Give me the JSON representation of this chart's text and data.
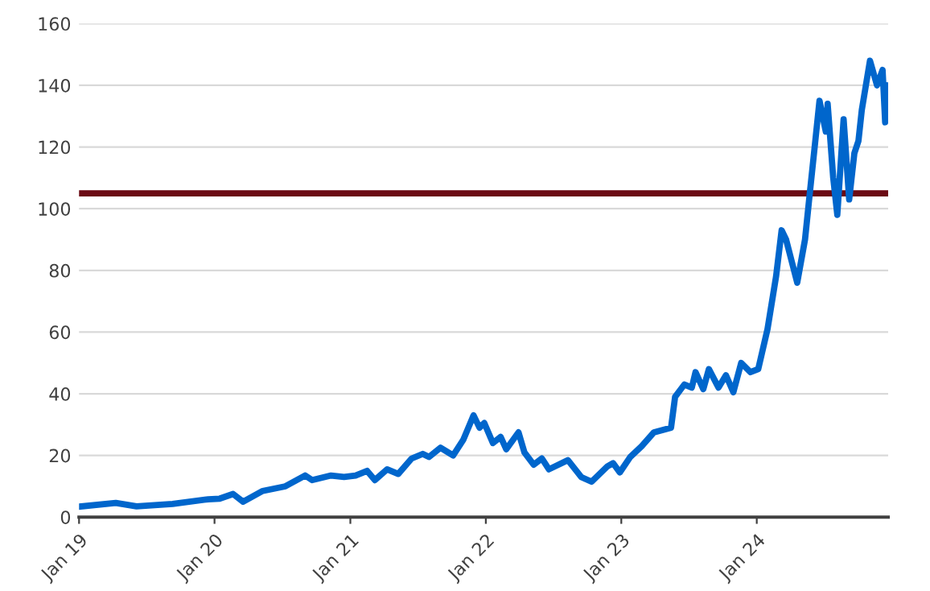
{
  "chart_data": {
    "type": "line",
    "x": [
      "2019-01-01",
      "2019-04-10",
      "2019-06-05",
      "2019-09-10",
      "2019-12-15",
      "2020-01-15",
      "2020-02-20",
      "2020-03-18",
      "2020-05-10",
      "2020-07-10",
      "2020-09-01",
      "2020-09-20",
      "2020-11-10",
      "2020-12-15",
      "2021-01-15",
      "2021-02-15",
      "2021-03-08",
      "2021-04-10",
      "2021-05-10",
      "2021-06-15",
      "2021-07-15",
      "2021-08-01",
      "2021-09-01",
      "2021-10-05",
      "2021-11-01",
      "2021-11-29",
      "2021-12-15",
      "2021-12-28",
      "2022-01-20",
      "2022-02-10",
      "2022-02-25",
      "2022-03-30",
      "2022-04-15",
      "2022-05-10",
      "2022-06-01",
      "2022-06-20",
      "2022-08-10",
      "2022-09-15",
      "2022-10-13",
      "2022-11-25",
      "2022-12-10",
      "2022-12-28",
      "2023-01-25",
      "2023-02-25",
      "2023-03-30",
      "2023-05-15",
      "2023-05-26",
      "2023-06-20",
      "2023-07-10",
      "2023-07-20",
      "2023-08-10",
      "2023-08-25",
      "2023-09-20",
      "2023-10-10",
      "2023-10-30",
      "2023-11-20",
      "2023-12-15",
      "2024-01-05",
      "2024-01-30",
      "2024-02-22",
      "2024-03-08",
      "2024-03-20",
      "2024-04-19",
      "2024-05-10",
      "2024-05-22",
      "2024-06-05",
      "2024-06-18",
      "2024-07-05",
      "2024-07-10",
      "2024-07-25",
      "2024-08-05",
      "2024-08-22",
      "2024-09-06",
      "2024-09-20",
      "2024-10-01",
      "2024-10-10",
      "2024-11-01",
      "2024-11-20",
      "2024-12-05",
      "2024-12-12",
      "2024-12-18"
    ],
    "series": [
      {
        "color": "#0066cc",
        "values": [
          3.4,
          4.6,
          3.5,
          4.3,
          5.8,
          6,
          7.5,
          5,
          8.5,
          10,
          13.5,
          12,
          13.5,
          13,
          13.5,
          15,
          12,
          15.5,
          14,
          19,
          20.5,
          19.5,
          22.5,
          20,
          25,
          33,
          29,
          30.5,
          24,
          26,
          22,
          27.5,
          21,
          17,
          19,
          15.5,
          18.5,
          13,
          11.5,
          16.5,
          17.5,
          14.5,
          19.5,
          23,
          27.5,
          29,
          39,
          43,
          42,
          47,
          41.5,
          48,
          42,
          46,
          40.5,
          50,
          47,
          48,
          61,
          78,
          93,
          90,
          76,
          90,
          104,
          120,
          135,
          125,
          134,
          110,
          98,
          129,
          103,
          118,
          122,
          132,
          148,
          140,
          145,
          128,
          140
        ]
      }
    ],
    "xlim": [
      "2019-01-01",
      "2024-12-20"
    ],
    "xticks": [
      {
        "value": "2019-01-01",
        "label": "Jan 19"
      },
      {
        "value": "2020-01-01",
        "label": "Jan 20"
      },
      {
        "value": "2021-01-01",
        "label": "Jan 21"
      },
      {
        "value": "2022-01-01",
        "label": "Jan 22"
      },
      {
        "value": "2023-01-01",
        "label": "Jan 23"
      },
      {
        "value": "2024-01-01",
        "label": "Jan 24"
      }
    ],
    "ylim": [
      0,
      160
    ],
    "yticks": [
      0,
      20,
      40,
      60,
      80,
      100,
      120,
      140,
      160
    ],
    "ref_lines": [
      {
        "axis": "y",
        "value": 105,
        "color": "#6b0a14"
      }
    ],
    "grid": "y"
  }
}
